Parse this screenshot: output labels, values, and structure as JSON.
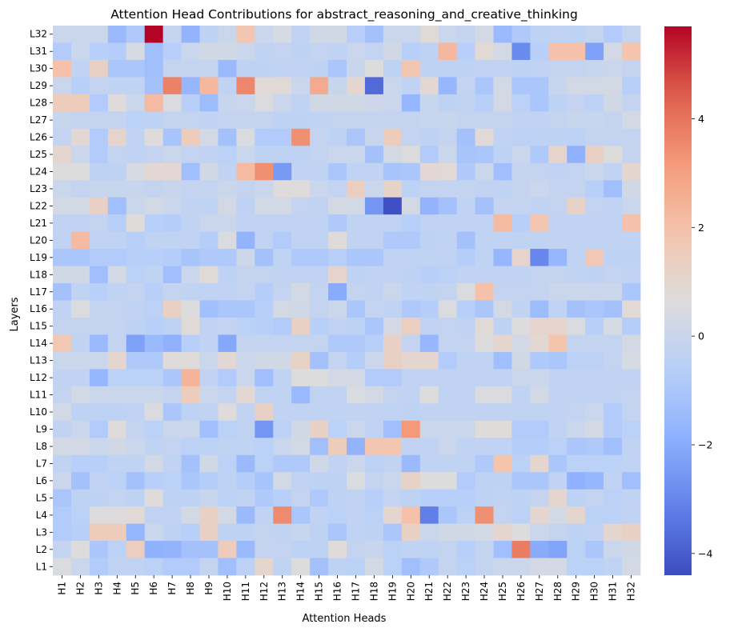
{
  "chart_data": {
    "type": "heatmap",
    "title": "Attention Head Contributions for abstract_reasoning_and_creative_thinking",
    "xlabel": "Attention Heads",
    "ylabel": "Layers",
    "columns": [
      "H1",
      "H2",
      "H3",
      "H4",
      "H5",
      "H6",
      "H7",
      "H8",
      "H9",
      "H10",
      "H11",
      "H12",
      "H13",
      "H14",
      "H15",
      "H16",
      "H17",
      "H18",
      "H19",
      "H20",
      "H21",
      "H22",
      "H23",
      "H24",
      "H25",
      "H26",
      "H27",
      "H28",
      "H29",
      "H30",
      "H31",
      "H32"
    ],
    "rows": [
      "L32",
      "L31",
      "L30",
      "L29",
      "L28",
      "L27",
      "L26",
      "L25",
      "L24",
      "L23",
      "L22",
      "L21",
      "L20",
      "L19",
      "L18",
      "L17",
      "L16",
      "L15",
      "L14",
      "L13",
      "L12",
      "L11",
      "L10",
      "L9",
      "L8",
      "L7",
      "L6",
      "L5",
      "L4",
      "L3",
      "L2",
      "L1"
    ],
    "values": [
      [
        0.0,
        0.0,
        0.0,
        -1.5,
        -0.9,
        5.7,
        -0.2,
        -1.7,
        -0.4,
        0.0,
        1.8,
        0.0,
        0.4,
        -0.3,
        0.2,
        0.2,
        -0.6,
        -1.2,
        0.0,
        0.0,
        0.8,
        0.0,
        -0.2,
        0.3,
        -1.5,
        -0.9,
        -0.4,
        -0.3,
        -0.4,
        -0.2,
        -0.8,
        -0.2
      ],
      [
        -0.8,
        0.0,
        -0.6,
        -0.7,
        0.4,
        -1.3,
        -0.6,
        0.0,
        0.2,
        0.2,
        0.0,
        -0.3,
        -0.2,
        -0.4,
        -0.2,
        -0.3,
        0.0,
        -0.2,
        0.2,
        -0.6,
        -0.4,
        2.3,
        -0.6,
        0.8,
        0.3,
        -2.9,
        -0.6,
        2.0,
        2.0,
        -2.3,
        0.3,
        1.9
      ],
      [
        2.0,
        -0.3,
        1.3,
        -1.0,
        -1.0,
        -1.3,
        -0.2,
        -0.2,
        -0.2,
        -1.5,
        -0.4,
        -0.4,
        -0.3,
        -0.3,
        -0.4,
        -1.0,
        -0.1,
        0.6,
        -0.4,
        1.8,
        -0.4,
        -0.4,
        -0.4,
        -0.3,
        -0.3,
        -0.4,
        -0.3,
        -0.2,
        -0.2,
        -0.1,
        0.0,
        -0.2
      ],
      [
        0.0,
        -0.6,
        -0.2,
        -0.3,
        -0.3,
        -1.2,
        3.7,
        -1.6,
        2.3,
        -0.3,
        3.6,
        0.8,
        0.8,
        0.0,
        2.7,
        -0.1,
        1.0,
        -3.7,
        0.0,
        -0.3,
        0.9,
        -1.6,
        -0.2,
        -1.0,
        0.3,
        -1.0,
        -1.0,
        -0.1,
        0.3,
        0.3,
        0.3,
        -0.6
      ],
      [
        1.5,
        1.5,
        -0.8,
        0.7,
        0.0,
        2.2,
        0.5,
        -0.6,
        -1.4,
        -0.1,
        0.0,
        0.5,
        0.0,
        -0.3,
        0.2,
        0.2,
        0.2,
        0.1,
        0.0,
        -1.6,
        -0.1,
        -0.4,
        -0.3,
        -0.6,
        0.3,
        -0.5,
        -1.0,
        -0.4,
        -0.2,
        -0.5,
        0.2,
        -0.2
      ],
      [
        -0.1,
        -0.2,
        -0.2,
        -0.2,
        -0.5,
        -0.4,
        -0.2,
        -0.2,
        -0.3,
        -0.2,
        -0.2,
        -0.2,
        -0.4,
        -0.4,
        -0.3,
        -0.2,
        -0.2,
        -0.2,
        -0.2,
        -0.2,
        -0.1,
        -0.1,
        -0.2,
        -0.2,
        -0.2,
        -0.3,
        -0.3,
        -0.2,
        -0.1,
        -0.1,
        -0.2,
        0.3
      ],
      [
        -0.2,
        0.9,
        -0.8,
        1.1,
        -0.3,
        0.7,
        -1.1,
        1.5,
        0.3,
        -1.2,
        0.5,
        -0.8,
        -0.8,
        3.4,
        -0.2,
        -0.4,
        -1.0,
        -0.1,
        1.5,
        -0.2,
        -0.4,
        -0.2,
        -1.2,
        0.8,
        -0.3,
        -0.5,
        -0.4,
        -0.4,
        -0.5,
        -0.2,
        -0.2,
        -0.2
      ],
      [
        1.0,
        0.0,
        -0.8,
        -0.2,
        -0.3,
        -0.2,
        0.0,
        -0.2,
        -0.3,
        -0.5,
        0.0,
        -0.4,
        -0.4,
        -0.4,
        -0.2,
        0.0,
        0.0,
        -1.2,
        0.3,
        0.6,
        -0.8,
        0.0,
        -1.1,
        -1.0,
        -0.4,
        0.0,
        -0.9,
        1.1,
        -1.8,
        1.3,
        0.6,
        -0.2
      ],
      [
        0.6,
        0.6,
        -0.4,
        -0.4,
        0.4,
        0.9,
        0.9,
        -1.3,
        0.2,
        -0.3,
        2.2,
        3.4,
        -2.5,
        -0.3,
        -0.3,
        -1.0,
        -0.3,
        -0.3,
        -1.1,
        -1.0,
        0.9,
        0.8,
        -0.9,
        0.0,
        -1.3,
        -0.2,
        -0.2,
        -0.3,
        -0.2,
        0.0,
        -0.3,
        1.0
      ],
      [
        0.0,
        -0.2,
        -0.1,
        -0.1,
        -0.1,
        -0.2,
        -0.1,
        -0.2,
        -0.2,
        0.0,
        -0.2,
        0.0,
        0.7,
        0.7,
        0.0,
        -0.2,
        1.4,
        0.0,
        1.2,
        -0.4,
        -0.2,
        -0.2,
        -0.2,
        -0.3,
        -0.3,
        -0.2,
        0.0,
        -0.2,
        -0.2,
        -0.6,
        -1.3,
        0.2
      ],
      [
        0.3,
        0.3,
        1.3,
        -1.3,
        0.0,
        0.3,
        0.0,
        -0.3,
        -0.3,
        0.3,
        -0.4,
        0.3,
        0.3,
        -0.2,
        -0.3,
        0.3,
        0.3,
        -2.6,
        -4.3,
        0.3,
        -1.7,
        -1.2,
        -0.3,
        -1.2,
        -0.2,
        -0.2,
        -0.3,
        -0.2,
        1.2,
        -0.2,
        -0.3,
        0.0
      ],
      [
        -0.3,
        -0.3,
        -0.2,
        -0.6,
        0.7,
        -0.6,
        -0.7,
        -0.3,
        0.0,
        0.0,
        -0.3,
        -0.3,
        -0.3,
        -0.3,
        -0.3,
        -0.9,
        -0.3,
        -0.3,
        -0.3,
        -0.6,
        -0.3,
        -0.3,
        -0.3,
        -0.3,
        2.2,
        -0.6,
        1.8,
        -0.3,
        -0.3,
        -0.3,
        -0.3,
        2.0
      ],
      [
        -0.3,
        2.2,
        -0.3,
        -0.3,
        -0.6,
        -0.3,
        -0.3,
        -0.3,
        -0.7,
        0.5,
        -1.7,
        -0.3,
        -0.8,
        -0.3,
        -0.3,
        0.7,
        -0.3,
        -0.3,
        -0.9,
        -0.9,
        -0.4,
        -0.3,
        -1.2,
        -0.3,
        -0.3,
        -0.3,
        -0.3,
        -0.3,
        -0.3,
        -0.3,
        -0.3,
        -0.3
      ],
      [
        -1.0,
        -1.0,
        -0.8,
        -0.8,
        -0.6,
        -0.6,
        -0.7,
        -1.1,
        -0.9,
        -0.9,
        0.1,
        -1.2,
        -0.3,
        -0.9,
        -0.9,
        -0.6,
        -1.0,
        -1.0,
        -0.3,
        -0.3,
        -0.3,
        -0.3,
        -0.7,
        -0.3,
        -1.6,
        1.1,
        -3.0,
        -1.6,
        -0.3,
        1.7,
        -0.4,
        -0.4
      ],
      [
        0.2,
        0.2,
        -1.3,
        0.3,
        -0.5,
        -0.3,
        -1.3,
        0.0,
        0.8,
        -0.4,
        -0.2,
        -0.2,
        -0.3,
        -0.3,
        -0.3,
        1.1,
        -0.4,
        -0.3,
        -0.3,
        -0.4,
        -0.6,
        -0.5,
        -0.3,
        -0.3,
        -0.3,
        -0.3,
        -0.2,
        -0.2,
        -0.3,
        -0.4,
        -0.2,
        -0.3
      ],
      [
        -1.2,
        -0.3,
        -0.6,
        -0.3,
        -0.2,
        -0.6,
        -0.2,
        -0.3,
        -0.3,
        -0.3,
        -0.2,
        -0.7,
        -0.2,
        0.3,
        -0.2,
        -2.0,
        -0.2,
        -0.3,
        0.0,
        -0.3,
        -0.3,
        -0.2,
        0.5,
        2.0,
        -0.2,
        -0.2,
        -0.2,
        0.0,
        0.0,
        0.0,
        0.0,
        -1.0
      ],
      [
        -0.3,
        0.5,
        -0.2,
        -0.2,
        -0.3,
        -0.5,
        1.3,
        0.6,
        -1.3,
        -1.0,
        -1.0,
        -0.6,
        0.3,
        0.2,
        -0.2,
        0.0,
        -1.0,
        -0.2,
        -0.3,
        -0.9,
        -0.7,
        0.5,
        -0.6,
        -1.0,
        0.3,
        -0.3,
        -1.4,
        -0.3,
        -1.2,
        -1.0,
        -1.2,
        0.8
      ],
      [
        -0.2,
        -0.2,
        -0.2,
        -0.2,
        -0.4,
        -0.6,
        -0.4,
        0.8,
        -0.3,
        -0.2,
        -0.5,
        -0.6,
        -0.8,
        1.3,
        -0.6,
        -0.3,
        -0.4,
        -1.0,
        0.3,
        1.4,
        -0.3,
        -0.2,
        -0.3,
        0.8,
        -0.4,
        0.6,
        1.1,
        1.1,
        0.5,
        -0.6,
        0.4,
        -0.7
      ],
      [
        1.7,
        -0.3,
        -1.5,
        -0.2,
        -2.3,
        -1.5,
        -1.8,
        -0.6,
        -0.3,
        -2.1,
        -0.2,
        -0.2,
        -0.2,
        -0.2,
        -0.2,
        -0.9,
        -0.9,
        -0.6,
        1.3,
        -0.2,
        -1.6,
        -0.2,
        -0.2,
        0.6,
        1.0,
        0.3,
        0.9,
        1.9,
        -0.2,
        -0.2,
        -0.2,
        0.3
      ],
      [
        0.0,
        0.0,
        0.0,
        1.0,
        -0.9,
        -0.9,
        0.7,
        0.7,
        0.0,
        0.9,
        0.0,
        0.2,
        0.2,
        1.2,
        -1.2,
        -0.2,
        -0.7,
        0.0,
        1.3,
        1.0,
        1.0,
        -0.8,
        -0.3,
        -0.3,
        -1.3,
        0.2,
        -0.9,
        -1.0,
        -0.5,
        -0.5,
        -0.2,
        0.4
      ],
      [
        -0.3,
        -0.3,
        -1.6,
        -0.5,
        -0.5,
        -0.5,
        -1.0,
        2.4,
        -0.3,
        -0.8,
        0.0,
        -1.3,
        -0.3,
        0.6,
        0.6,
        0.3,
        0.3,
        -0.8,
        -0.8,
        -0.3,
        -0.3,
        -0.3,
        -0.3,
        -0.3,
        -0.3,
        0.0,
        0.0,
        -0.3,
        -0.3,
        -0.3,
        -0.3,
        -0.3
      ],
      [
        -0.2,
        0.3,
        0.0,
        0.0,
        0.0,
        0.0,
        -0.2,
        1.5,
        0.0,
        -0.2,
        0.9,
        -0.3,
        -0.3,
        -1.5,
        -0.3,
        -0.3,
        0.5,
        0.3,
        -0.2,
        -0.3,
        0.6,
        -0.3,
        -0.3,
        0.5,
        0.5,
        -0.3,
        0.3,
        -0.3,
        -0.3,
        -0.3,
        -0.3,
        -0.2
      ],
      [
        0.3,
        -0.4,
        -0.4,
        -0.4,
        -0.3,
        0.5,
        -1.0,
        -0.4,
        -0.3,
        0.7,
        -0.3,
        1.3,
        -0.3,
        -0.3,
        -0.3,
        -0.3,
        -0.3,
        -0.3,
        -0.3,
        -0.4,
        -0.3,
        -0.3,
        -0.3,
        -0.3,
        -0.3,
        -0.3,
        -0.3,
        -0.3,
        -0.2,
        0.0,
        -0.8,
        -0.2
      ],
      [
        -0.3,
        0.0,
        -0.8,
        0.7,
        -0.2,
        -0.5,
        0.0,
        0.0,
        -1.3,
        -0.5,
        -0.3,
        -2.6,
        -0.5,
        0.2,
        1.3,
        -0.5,
        0.0,
        -0.3,
        -1.3,
        3.2,
        0.0,
        0.0,
        0.0,
        0.7,
        0.7,
        -0.8,
        -0.8,
        -0.3,
        0.0,
        0.3,
        -0.8,
        -0.5
      ],
      [
        0.3,
        0.3,
        0.0,
        0.2,
        0.0,
        -0.3,
        -0.2,
        -0.5,
        -0.5,
        -0.3,
        -0.3,
        -0.5,
        0.0,
        0.3,
        -1.3,
        1.5,
        -1.7,
        1.8,
        1.8,
        -0.3,
        -0.3,
        0.0,
        -0.3,
        -0.3,
        -0.3,
        -0.7,
        -0.7,
        -0.5,
        -1.0,
        -0.9,
        -1.3,
        -0.3
      ],
      [
        -0.3,
        -0.6,
        -0.6,
        -0.3,
        -0.3,
        0.3,
        -0.3,
        -1.2,
        0.2,
        -0.5,
        -1.5,
        -0.5,
        -0.9,
        -0.9,
        0.2,
        -0.3,
        0.0,
        -0.5,
        -0.3,
        -1.5,
        -0.3,
        -0.3,
        -0.3,
        -0.9,
        1.9,
        -0.5,
        1.0,
        -1.0,
        -0.5,
        -0.5,
        -0.5,
        -0.3
      ],
      [
        0.0,
        -1.2,
        -0.3,
        -0.5,
        -1.2,
        -0.6,
        -0.5,
        -1.0,
        -0.7,
        -0.4,
        -0.7,
        -1.1,
        0.3,
        -0.3,
        -0.4,
        -0.4,
        0.5,
        -0.2,
        0.0,
        1.2,
        0.6,
        0.6,
        -0.8,
        -0.4,
        -0.4,
        -1.0,
        -1.0,
        -0.3,
        -1.8,
        -1.6,
        -0.3,
        -1.3
      ],
      [
        -1.0,
        -0.4,
        -0.4,
        -0.2,
        -0.4,
        0.7,
        -0.4,
        -0.4,
        -0.1,
        -0.5,
        -0.3,
        -0.9,
        -0.6,
        -0.2,
        -0.9,
        -0.4,
        -0.3,
        -0.6,
        -0.2,
        -0.4,
        -0.6,
        -0.6,
        -0.6,
        -0.4,
        -0.3,
        -0.4,
        -0.2,
        1.0,
        -0.4,
        -0.2,
        -0.5,
        -0.3
      ],
      [
        -0.8,
        -0.5,
        0.6,
        0.6,
        0.8,
        -0.3,
        -0.3,
        0.3,
        1.3,
        0.3,
        -1.5,
        -0.3,
        3.5,
        -1.0,
        -0.3,
        -0.5,
        -0.3,
        -0.5,
        1.0,
        2.0,
        -3.2,
        -1.0,
        -0.5,
        3.4,
        -0.2,
        -0.5,
        1.0,
        0.3,
        1.0,
        -0.5,
        -0.5,
        -0.3
      ],
      [
        -0.8,
        -0.6,
        1.5,
        1.5,
        -1.6,
        0.0,
        -0.4,
        -0.6,
        1.3,
        -0.4,
        -0.4,
        -0.2,
        -0.3,
        -0.1,
        -0.4,
        -1.0,
        -0.3,
        -0.4,
        -1.0,
        1.3,
        0.0,
        0.2,
        0.2,
        0.3,
        1.0,
        0.6,
        0.0,
        -0.2,
        -0.4,
        -0.3,
        1.0,
        1.3
      ],
      [
        -0.2,
        0.6,
        -1.0,
        -0.5,
        1.4,
        -1.8,
        -1.7,
        -1.2,
        -1.2,
        1.5,
        -1.5,
        -0.2,
        -0.2,
        -0.5,
        -0.4,
        0.7,
        -0.2,
        -0.1,
        -0.5,
        -0.3,
        -0.3,
        -0.2,
        -0.6,
        -0.2,
        -1.3,
        3.8,
        -2.0,
        -2.2,
        -0.5,
        -1.0,
        0.0,
        0.2
      ],
      [
        0.5,
        0.0,
        -0.8,
        -0.3,
        -0.3,
        -0.5,
        -0.8,
        -0.8,
        -0.2,
        -1.3,
        -0.5,
        1.0,
        -0.3,
        0.6,
        -1.2,
        -0.4,
        -0.5,
        0.3,
        -0.5,
        -1.3,
        -0.9,
        -0.2,
        -0.5,
        -0.2,
        0.0,
        0.0,
        0.3,
        0.3,
        -0.5,
        -0.5,
        -0.3,
        0.3
      ]
    ],
    "vmin": -4.4,
    "vmax": 5.7,
    "colormap": "coolwarm",
    "colorbar_ticks": [
      4,
      2,
      0,
      -2,
      -4
    ],
    "colorbar_tick_labels": [
      "4",
      "2",
      "0",
      "−2",
      "−4"
    ],
    "colors": {
      "low": "#3b4cc0",
      "mid": "#dddcdc",
      "high": "#b40426"
    }
  }
}
